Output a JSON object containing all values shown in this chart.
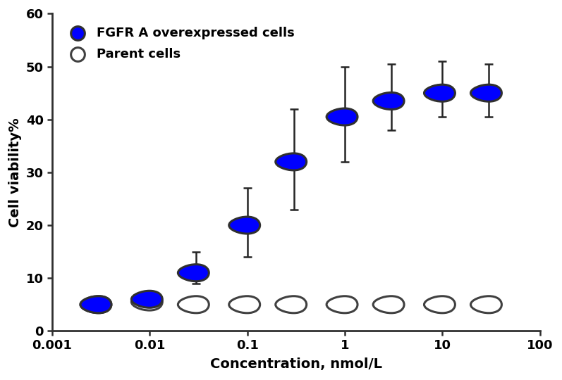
{
  "title": "",
  "xlabel": "Concentration, nmol/L",
  "ylabel": "Cell viability%",
  "background_color": "#ffffff",
  "xlim": [
    0.001,
    100
  ],
  "ylim": [
    0,
    60
  ],
  "yticks": [
    0,
    10,
    20,
    30,
    40,
    50,
    60
  ],
  "fgfr_x": [
    0.003,
    0.01,
    0.03,
    0.1,
    0.3,
    1.0,
    3.0,
    10.0,
    30.0
  ],
  "fgfr_y": [
    5.0,
    6.0,
    11.0,
    20.0,
    32.0,
    40.5,
    43.5,
    45.0,
    45.0
  ],
  "fgfr_yerr_lo": [
    0.5,
    0.8,
    2.0,
    6.0,
    9.0,
    8.5,
    5.5,
    4.5,
    4.5
  ],
  "fgfr_yerr_hi": [
    0.5,
    1.5,
    4.0,
    7.0,
    10.0,
    9.5,
    7.0,
    6.0,
    5.5
  ],
  "fgfr_color": "#0000ff",
  "fgfr_edgecolor": "#303030",
  "parent_x": [
    0.003,
    0.01,
    0.03,
    0.1,
    0.3,
    1.0,
    3.0,
    10.0,
    30.0
  ],
  "parent_y": [
    5.0,
    5.5,
    5.0,
    5.0,
    5.0,
    5.0,
    5.0,
    5.0,
    5.0
  ],
  "parent_yerr_lo": [
    0.3,
    0.5,
    0.8,
    0.5,
    0.8,
    0.8,
    0.8,
    0.5,
    0.5
  ],
  "parent_yerr_hi": [
    0.3,
    0.5,
    0.8,
    0.5,
    0.8,
    0.8,
    0.8,
    0.5,
    0.5
  ],
  "parent_color": "#ffffff",
  "parent_edgecolor": "#404040",
  "legend_fgfr_label": "FGFR A overexpressed cells",
  "legend_parent_label": "Parent cells",
  "errorbar_color": "#252525",
  "errorbar_lw": 1.8,
  "errorbar_capsize": 4,
  "spine_color": "#303030",
  "spine_lw": 2.0
}
